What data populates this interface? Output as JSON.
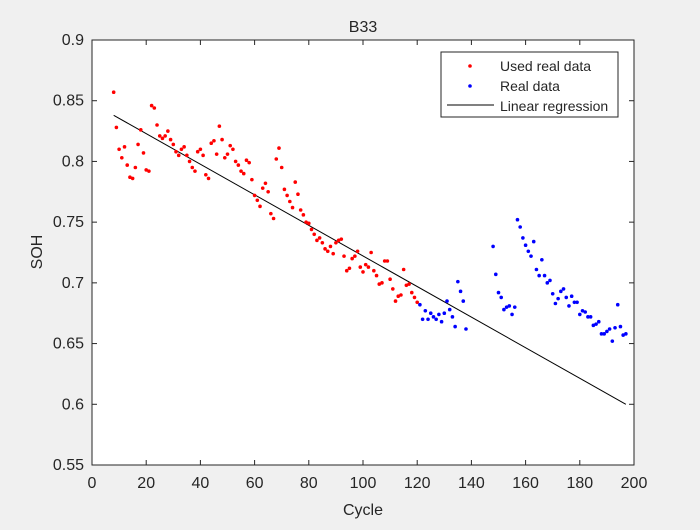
{
  "chart_data": {
    "type": "scatter",
    "title": "B33",
    "xlabel": "Cycle",
    "ylabel": "SOH",
    "xlim": [
      0,
      200
    ],
    "ylim": [
      0.55,
      0.9
    ],
    "xticks": [
      0,
      20,
      40,
      60,
      80,
      100,
      120,
      140,
      160,
      180,
      200
    ],
    "yticks": [
      0.55,
      0.6,
      0.65,
      0.7,
      0.75,
      0.8,
      0.85,
      0.9
    ],
    "xtick_labels": [
      "0",
      "20",
      "40",
      "60",
      "80",
      "100",
      "120",
      "140",
      "160",
      "180",
      "200"
    ],
    "ytick_labels": [
      "0.55",
      "0.6",
      "0.65",
      "0.7",
      "0.75",
      "0.8",
      "0.85",
      "0.9"
    ],
    "grid": false,
    "legend_position": "top-right",
    "series": [
      {
        "name": "Used real data",
        "type": "scatter",
        "color": "#ff0000",
        "points": [
          [
            8,
            0.857
          ],
          [
            9,
            0.828
          ],
          [
            10,
            0.81
          ],
          [
            11,
            0.803
          ],
          [
            12,
            0.812
          ],
          [
            13,
            0.797
          ],
          [
            14,
            0.787
          ],
          [
            15,
            0.786
          ],
          [
            16,
            0.795
          ],
          [
            17,
            0.814
          ],
          [
            18,
            0.826
          ],
          [
            19,
            0.807
          ],
          [
            20,
            0.793
          ],
          [
            21,
            0.792
          ],
          [
            22,
            0.846
          ],
          [
            23,
            0.844
          ],
          [
            24,
            0.83
          ],
          [
            25,
            0.821
          ],
          [
            26,
            0.819
          ],
          [
            27,
            0.821
          ],
          [
            28,
            0.825
          ],
          [
            29,
            0.818
          ],
          [
            30,
            0.814
          ],
          [
            31,
            0.808
          ],
          [
            32,
            0.805
          ],
          [
            33,
            0.81
          ],
          [
            34,
            0.812
          ],
          [
            35,
            0.805
          ],
          [
            36,
            0.8
          ],
          [
            37,
            0.795
          ],
          [
            38,
            0.792
          ],
          [
            39,
            0.808
          ],
          [
            40,
            0.81
          ],
          [
            41,
            0.805
          ],
          [
            42,
            0.789
          ],
          [
            43,
            0.786
          ],
          [
            44,
            0.815
          ],
          [
            45,
            0.817
          ],
          [
            46,
            0.806
          ],
          [
            47,
            0.829
          ],
          [
            48,
            0.818
          ],
          [
            49,
            0.803
          ],
          [
            50,
            0.806
          ],
          [
            51,
            0.813
          ],
          [
            52,
            0.81
          ],
          [
            53,
            0.8
          ],
          [
            54,
            0.797
          ],
          [
            55,
            0.792
          ],
          [
            56,
            0.79
          ],
          [
            57,
            0.801
          ],
          [
            58,
            0.799
          ],
          [
            59,
            0.785
          ],
          [
            60,
            0.772
          ],
          [
            61,
            0.768
          ],
          [
            62,
            0.763
          ],
          [
            63,
            0.778
          ],
          [
            64,
            0.782
          ],
          [
            65,
            0.775
          ],
          [
            66,
            0.757
          ],
          [
            67,
            0.753
          ],
          [
            68,
            0.802
          ],
          [
            69,
            0.811
          ],
          [
            70,
            0.795
          ],
          [
            71,
            0.777
          ],
          [
            72,
            0.772
          ],
          [
            73,
            0.767
          ],
          [
            74,
            0.762
          ],
          [
            75,
            0.783
          ],
          [
            76,
            0.773
          ],
          [
            77,
            0.76
          ],
          [
            78,
            0.756
          ],
          [
            79,
            0.75
          ],
          [
            80,
            0.749
          ],
          [
            81,
            0.744
          ],
          [
            82,
            0.74
          ],
          [
            83,
            0.735
          ],
          [
            84,
            0.737
          ],
          [
            85,
            0.733
          ],
          [
            86,
            0.728
          ],
          [
            87,
            0.726
          ],
          [
            88,
            0.73
          ],
          [
            89,
            0.724
          ],
          [
            90,
            0.733
          ],
          [
            91,
            0.735
          ],
          [
            92,
            0.736
          ],
          [
            93,
            0.722
          ],
          [
            94,
            0.71
          ],
          [
            95,
            0.712
          ],
          [
            96,
            0.72
          ],
          [
            97,
            0.722
          ],
          [
            98,
            0.726
          ],
          [
            99,
            0.713
          ],
          [
            100,
            0.709
          ],
          [
            101,
            0.715
          ],
          [
            102,
            0.713
          ],
          [
            103,
            0.725
          ],
          [
            104,
            0.71
          ],
          [
            105,
            0.706
          ],
          [
            106,
            0.699
          ],
          [
            107,
            0.7
          ],
          [
            108,
            0.718
          ],
          [
            109,
            0.718
          ],
          [
            110,
            0.703
          ],
          [
            111,
            0.695
          ],
          [
            112,
            0.685
          ],
          [
            113,
            0.689
          ],
          [
            114,
            0.69
          ],
          [
            115,
            0.711
          ],
          [
            116,
            0.698
          ],
          [
            117,
            0.699
          ],
          [
            118,
            0.692
          ],
          [
            119,
            0.688
          ],
          [
            120,
            0.684
          ]
        ]
      },
      {
        "name": "Real data",
        "type": "scatter",
        "color": "#0000ff",
        "points": [
          [
            121,
            0.682
          ],
          [
            122,
            0.67
          ],
          [
            123,
            0.677
          ],
          [
            124,
            0.67
          ],
          [
            125,
            0.675
          ],
          [
            126,
            0.672
          ],
          [
            127,
            0.67
          ],
          [
            128,
            0.674
          ],
          [
            129,
            0.668
          ],
          [
            130,
            0.675
          ],
          [
            131,
            0.685
          ],
          [
            132,
            0.678
          ],
          [
            133,
            0.672
          ],
          [
            134,
            0.664
          ],
          [
            135,
            0.701
          ],
          [
            136,
            0.693
          ],
          [
            137,
            0.685
          ],
          [
            138,
            0.662
          ],
          [
            148,
            0.73
          ],
          [
            149,
            0.707
          ],
          [
            150,
            0.692
          ],
          [
            151,
            0.688
          ],
          [
            152,
            0.678
          ],
          [
            153,
            0.68
          ],
          [
            154,
            0.681
          ],
          [
            155,
            0.674
          ],
          [
            156,
            0.68
          ],
          [
            157,
            0.752
          ],
          [
            158,
            0.746
          ],
          [
            159,
            0.737
          ],
          [
            160,
            0.731
          ],
          [
            161,
            0.726
          ],
          [
            162,
            0.722
          ],
          [
            163,
            0.734
          ],
          [
            164,
            0.711
          ],
          [
            165,
            0.706
          ],
          [
            166,
            0.719
          ],
          [
            167,
            0.706
          ],
          [
            168,
            0.7
          ],
          [
            169,
            0.702
          ],
          [
            170,
            0.691
          ],
          [
            171,
            0.683
          ],
          [
            172,
            0.687
          ],
          [
            173,
            0.693
          ],
          [
            174,
            0.695
          ],
          [
            175,
            0.688
          ],
          [
            176,
            0.681
          ],
          [
            177,
            0.689
          ],
          [
            178,
            0.684
          ],
          [
            179,
            0.684
          ],
          [
            180,
            0.674
          ],
          [
            181,
            0.677
          ],
          [
            182,
            0.676
          ],
          [
            183,
            0.672
          ],
          [
            184,
            0.672
          ],
          [
            185,
            0.665
          ],
          [
            186,
            0.666
          ],
          [
            187,
            0.668
          ],
          [
            188,
            0.658
          ],
          [
            189,
            0.658
          ],
          [
            190,
            0.66
          ],
          [
            191,
            0.662
          ],
          [
            192,
            0.652
          ],
          [
            193,
            0.663
          ],
          [
            194,
            0.682
          ],
          [
            195,
            0.664
          ],
          [
            196,
            0.657
          ],
          [
            197,
            0.658
          ]
        ]
      },
      {
        "name": "Linear regression",
        "type": "line",
        "color": "#000000",
        "x": [
          8,
          197
        ],
        "y": [
          0.838,
          0.6
        ]
      }
    ]
  }
}
